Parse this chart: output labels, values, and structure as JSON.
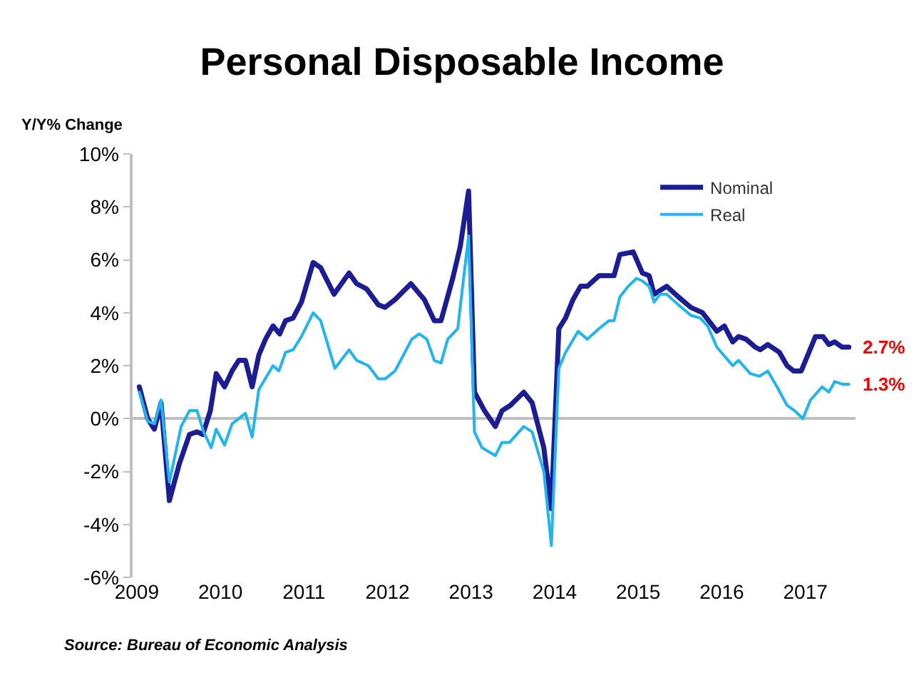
{
  "chart_data": {
    "type": "line",
    "title": "Personal Disposable Income",
    "ylabel": "Y/Y% Change",
    "xlim": [
      2008.95,
      2017.6
    ],
    "xticks": [
      2009,
      2010,
      2011,
      2012,
      2013,
      2014,
      2015,
      2016,
      2017
    ],
    "ylim": [
      -6,
      10
    ],
    "yticks": [
      {
        "value": -6,
        "label": "-6%"
      },
      {
        "value": -4,
        "label": "-4%"
      },
      {
        "value": -2,
        "label": "-2%"
      },
      {
        "value": 0,
        "label": "0%"
      },
      {
        "value": 2,
        "label": "2%"
      },
      {
        "value": 4,
        "label": "4%"
      },
      {
        "value": 6,
        "label": "6%"
      },
      {
        "value": 8,
        "label": "8%"
      },
      {
        "value": 10,
        "label": "10%"
      }
    ],
    "legend": "top right",
    "marker": "none",
    "line_style": "solid",
    "series": [
      {
        "name": "Nominal",
        "color": "#1c1c94",
        "x": [
          2009.03,
          2009.13,
          2009.21,
          2009.29,
          2009.39,
          2009.51,
          2009.63,
          2009.72,
          2009.79,
          2009.88,
          2009.95,
          2010.05,
          2010.14,
          2010.22,
          2010.3,
          2010.38,
          2010.46,
          2010.54,
          2010.63,
          2010.71,
          2010.78,
          2010.87,
          2010.97,
          2011.11,
          2011.2,
          2011.36,
          2011.54,
          2011.63,
          2011.75,
          2011.89,
          2011.97,
          2012.09,
          2012.28,
          2012.44,
          2012.56,
          2012.64,
          2012.78,
          2012.87,
          2012.97,
          2013.04,
          2013.16,
          2013.29,
          2013.37,
          2013.47,
          2013.63,
          2013.73,
          2013.87,
          2013.96,
          2014.05,
          2014.13,
          2014.22,
          2014.31,
          2014.39,
          2014.53,
          2014.71,
          2014.78,
          2014.94,
          2015.05,
          2015.13,
          2015.19,
          2015.34,
          2015.48,
          2015.63,
          2015.77,
          2015.94,
          2016.03,
          2016.13,
          2016.2,
          2016.29,
          2016.4,
          2016.46,
          2016.55,
          2016.69,
          2016.78,
          2016.86,
          2016.95,
          2017.12,
          2017.21,
          2017.28,
          2017.35,
          2017.44,
          2017.52
        ],
        "values": [
          1.2,
          0.0,
          -0.4,
          0.6,
          -3.1,
          -1.7,
          -0.6,
          -0.5,
          -0.6,
          0.3,
          1.7,
          1.2,
          1.8,
          2.2,
          2.2,
          1.2,
          2.4,
          3.0,
          3.5,
          3.2,
          3.7,
          3.8,
          4.4,
          5.9,
          5.7,
          4.7,
          5.5,
          5.1,
          4.9,
          4.3,
          4.2,
          4.5,
          5.1,
          4.5,
          3.7,
          3.7,
          5.3,
          6.5,
          8.6,
          1.0,
          0.3,
          -0.3,
          0.3,
          0.5,
          1.0,
          0.6,
          -1.1,
          -3.4,
          3.4,
          3.8,
          4.5,
          5.0,
          5.0,
          5.4,
          5.4,
          6.2,
          6.3,
          5.5,
          5.4,
          4.7,
          5.0,
          4.6,
          4.2,
          4.0,
          3.3,
          3.5,
          2.9,
          3.1,
          3.0,
          2.7,
          2.6,
          2.8,
          2.5,
          2.0,
          1.8,
          1.8,
          3.1,
          3.1,
          2.8,
          2.9,
          2.7,
          2.7
        ]
      },
      {
        "name": "Real",
        "color": "#1fb6f0",
        "x": [
          2009.03,
          2009.13,
          2009.21,
          2009.29,
          2009.39,
          2009.53,
          2009.63,
          2009.72,
          2009.8,
          2009.89,
          2009.95,
          2010.05,
          2010.14,
          2010.3,
          2010.38,
          2010.46,
          2010.63,
          2010.7,
          2010.78,
          2010.87,
          2010.97,
          2011.11,
          2011.2,
          2011.37,
          2011.54,
          2011.63,
          2011.77,
          2011.89,
          2011.97,
          2012.09,
          2012.29,
          2012.38,
          2012.47,
          2012.56,
          2012.64,
          2012.72,
          2012.84,
          2012.97,
          2013.04,
          2013.13,
          2013.29,
          2013.37,
          2013.46,
          2013.63,
          2013.73,
          2013.87,
          2013.96,
          2014.05,
          2014.13,
          2014.28,
          2014.39,
          2014.53,
          2014.65,
          2014.71,
          2014.78,
          2014.88,
          2014.98,
          2015.05,
          2015.13,
          2015.19,
          2015.26,
          2015.34,
          2015.48,
          2015.63,
          2015.74,
          2015.83,
          2015.94,
          2016.13,
          2016.2,
          2016.34,
          2016.45,
          2016.55,
          2016.66,
          2016.78,
          2016.87,
          2016.97,
          2017.06,
          2017.2,
          2017.28,
          2017.35,
          2017.44,
          2017.52
        ],
        "values": [
          1.0,
          -0.1,
          -0.2,
          0.7,
          -2.4,
          -0.3,
          0.3,
          0.3,
          -0.5,
          -1.1,
          -0.4,
          -1.0,
          -0.2,
          0.2,
          -0.7,
          1.1,
          2.0,
          1.8,
          2.5,
          2.6,
          3.1,
          4.0,
          3.7,
          1.9,
          2.6,
          2.2,
          2.0,
          1.5,
          1.5,
          1.8,
          3.0,
          3.2,
          3.0,
          2.2,
          2.1,
          3.0,
          3.4,
          6.9,
          -0.5,
          -1.1,
          -1.4,
          -0.9,
          -0.9,
          -0.3,
          -0.5,
          -2.0,
          -4.8,
          1.9,
          2.5,
          3.3,
          3.0,
          3.4,
          3.7,
          3.7,
          4.6,
          5.0,
          5.3,
          5.2,
          5.0,
          4.4,
          4.7,
          4.7,
          4.3,
          3.9,
          3.8,
          3.5,
          2.7,
          2.0,
          2.2,
          1.7,
          1.6,
          1.8,
          1.2,
          0.5,
          0.3,
          0.0,
          0.7,
          1.2,
          1.0,
          1.4,
          1.3,
          1.3
        ]
      }
    ],
    "annotations": [
      {
        "text": "2.7%",
        "x": 2017.52,
        "y": 2.7
      },
      {
        "text": "1.3%",
        "x": 2017.52,
        "y": 1.3
      },
      "Source: Bureau of Economic Analysis"
    ]
  }
}
